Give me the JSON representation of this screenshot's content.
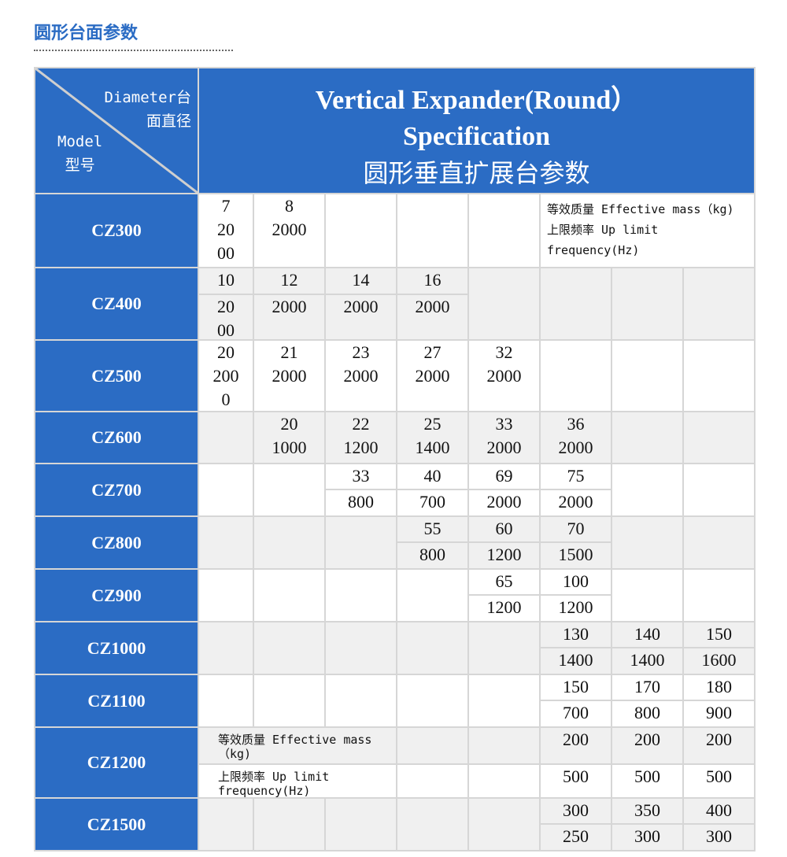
{
  "page_title": "圆形台面参数",
  "header": {
    "corner_diameter": "Diameter台\n面直径",
    "corner_model": "Model\n型号",
    "title_en1": "Vertical Expander(Round）",
    "title_en2": "Specification",
    "title_cn": "圆形垂直扩展台参数"
  },
  "notes": {
    "full": "等效质量 Effective mass（kg) 上限频率 Up limit frequency(Hz)",
    "mass": "等效质量 Effective mass（kg)",
    "freq": "上限频率 Up limit frequency(Hz)"
  },
  "rows": {
    "cz300": {
      "model": "CZ300",
      "v": [
        "7\n20\n00",
        "8\n2000"
      ]
    },
    "cz400": {
      "model": "CZ400",
      "m": [
        "10",
        "12",
        "14",
        "16"
      ],
      "f": [
        "20\n00",
        "2000",
        "2000",
        "2000"
      ]
    },
    "cz500": {
      "model": "CZ500",
      "v": [
        "20\n200\n0",
        "21\n2000",
        "23\n2000",
        "27\n2000",
        "32\n2000"
      ]
    },
    "cz600": {
      "model": "CZ600",
      "v": [
        "20\n1000",
        "22\n1200",
        "25\n1400",
        "33\n2000",
        "36\n2000"
      ]
    },
    "cz700": {
      "model": "CZ700",
      "m": [
        "33",
        "40",
        "69",
        "75"
      ],
      "f": [
        "800",
        "700",
        "2000",
        "2000"
      ]
    },
    "cz800": {
      "model": "CZ800",
      "m": [
        "55",
        "60",
        "70"
      ],
      "f": [
        "800",
        "1200",
        "1500"
      ]
    },
    "cz900": {
      "model": "CZ900",
      "m": [
        "65",
        "100"
      ],
      "f": [
        "1200",
        "1200"
      ]
    },
    "cz1000": {
      "model": "CZ1000",
      "m": [
        "130",
        "140",
        "150"
      ],
      "f": [
        "1400",
        "1400",
        "1600"
      ]
    },
    "cz1100": {
      "model": "CZ1100",
      "m": [
        "150",
        "170",
        "180"
      ],
      "f": [
        "700",
        "800",
        "900"
      ]
    },
    "cz1200": {
      "model": "CZ1200",
      "m": [
        "200",
        "200",
        "200"
      ],
      "f": [
        "500",
        "500",
        "500"
      ]
    },
    "cz1500": {
      "model": "CZ1500",
      "m": [
        "300",
        "350",
        "400"
      ],
      "f": [
        "250",
        "300",
        "300"
      ]
    }
  },
  "colors": {
    "brand": "#2b6cc4",
    "grid": "#d6d6d6",
    "alt_row": "#f0f0f0"
  }
}
